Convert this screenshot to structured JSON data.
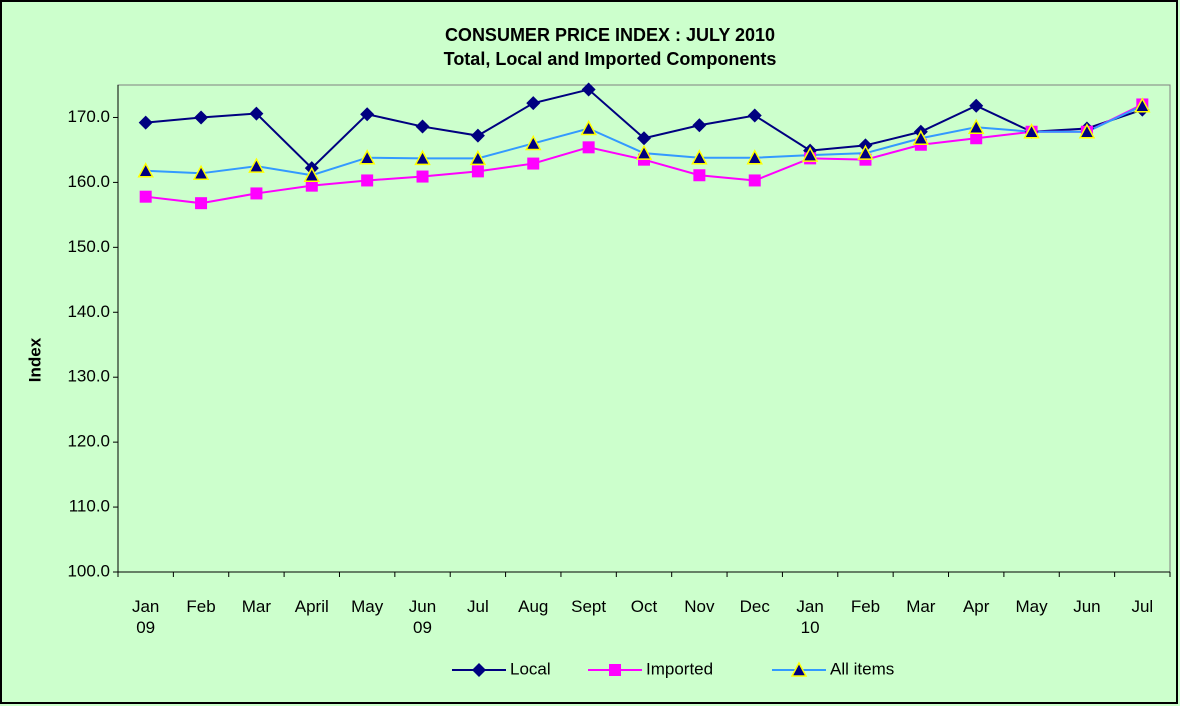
{
  "chart_data": {
    "type": "line",
    "title": "CONSUMER PRICE INDEX : JULY 2010",
    "subtitle": "Total, Local and Imported Components",
    "y_label": "Index",
    "categories": [
      "Jan\n09",
      "Feb",
      "Mar",
      "April",
      "May",
      "Jun\n09",
      "Jul",
      "Aug",
      "Sept",
      "Oct",
      "Nov",
      "Dec",
      "Jan\n10",
      "Feb",
      "Mar",
      "Apr",
      "May",
      "Jun",
      "Jul"
    ],
    "series": [
      {
        "name": "Local",
        "color": "#000080",
        "marker": "diamond",
        "values": [
          169.2,
          170.0,
          170.6,
          162.2,
          170.5,
          168.6,
          167.2,
          172.2,
          174.3,
          166.8,
          168.8,
          170.3,
          164.9,
          165.7,
          167.8,
          171.8,
          167.8,
          168.3,
          171.2
        ]
      },
      {
        "name": "Imported",
        "color": "#ff00ff",
        "marker": "square",
        "values": [
          157.8,
          156.8,
          158.3,
          159.5,
          160.3,
          160.9,
          161.7,
          162.9,
          165.4,
          163.5,
          161.1,
          160.3,
          163.7,
          163.5,
          165.8,
          166.8,
          167.8,
          167.8,
          172.0
        ]
      },
      {
        "name": "All items",
        "color": "#3399ff",
        "marker": "triangle",
        "values": [
          161.8,
          161.4,
          162.5,
          161.1,
          163.8,
          163.7,
          163.7,
          166.0,
          168.3,
          164.5,
          163.8,
          163.8,
          164.2,
          164.5,
          166.8,
          168.5,
          167.8,
          167.8,
          171.8
        ]
      }
    ],
    "ylim": [
      100,
      175
    ],
    "yticks": [
      {
        "value": 100,
        "label": "100.0"
      },
      {
        "value": 110,
        "label": "110.0"
      },
      {
        "value": 120,
        "label": "120.0"
      },
      {
        "value": 130,
        "label": "130.0"
      },
      {
        "value": 140,
        "label": "140.0"
      },
      {
        "value": 150,
        "label": "150.0"
      },
      {
        "value": 160,
        "label": "160.0"
      },
      {
        "value": 170,
        "label": "170.0"
      }
    ],
    "legend": "bottom"
  }
}
